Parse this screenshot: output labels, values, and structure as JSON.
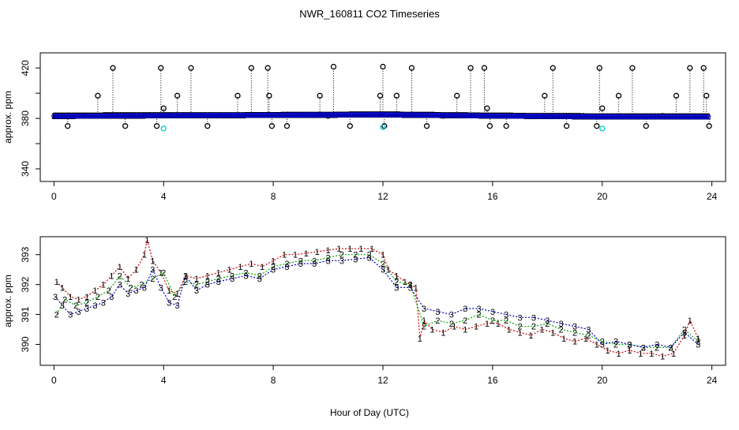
{
  "figure": {
    "title": "NWR_160811  CO2 Timeseries",
    "xlabel": "Hour of Day (UTC)"
  },
  "chart_data": [
    {
      "type": "scatter",
      "title": "NWR_160811  CO2 Timeseries",
      "xlabel": "",
      "ylabel": "approx. ppm",
      "xlim": [
        -0.5,
        24.5
      ],
      "ylim": [
        330,
        432
      ],
      "xticks": [
        0,
        4,
        8,
        12,
        16,
        20,
        24
      ],
      "yticks": [
        340,
        360,
        380,
        400,
        420
      ],
      "ytick_labels": [
        "340",
        "",
        "380",
        "",
        "420"
      ],
      "grid": false,
      "series": [
        {
          "name": "",
          "marker": "o",
          "color": "#000000",
          "x": [
            0.05,
            0.5,
            1.0,
            1.6,
            2.15,
            2.6,
            3.3,
            3.75,
            3.9,
            4.0,
            4.5,
            5.0,
            5.6,
            6.7,
            7.2,
            7.8,
            7.85,
            7.95,
            8.5,
            9.7,
            10.0,
            10.2,
            10.8,
            11.9,
            12.0,
            12.05,
            12.5,
            13.05,
            13.6,
            14.2,
            14.7,
            15.2,
            15.7,
            15.8,
            15.9,
            16.5,
            17.2,
            17.9,
            18.2,
            18.7,
            19.3,
            19.8,
            19.9,
            20.0,
            20.6,
            21.1,
            21.6,
            22.2,
            22.7,
            23.2,
            23.7,
            23.8,
            23.9
          ],
          "y": [
            382,
            374,
            382,
            398,
            420,
            374,
            382,
            374,
            420,
            388,
            398,
            420,
            374,
            398,
            420,
            420,
            398,
            374,
            374,
            398,
            382,
            421,
            374,
            398,
            421,
            374,
            398,
            420,
            374,
            382,
            398,
            420,
            420,
            388,
            374,
            374,
            382,
            398,
            420,
            374,
            382,
            374,
            420,
            388,
            398,
            420,
            374,
            382,
            398,
            420,
            420,
            398,
            374
          ]
        },
        {
          "name": "",
          "marker": "1",
          "color": "#d40000",
          "note_baseline": "continuous near 382 ppm, 0-24 h",
          "x": [
            0,
            4,
            8,
            12,
            16,
            20,
            23.9
          ],
          "y": [
            382.5,
            383,
            383,
            383.5,
            382.5,
            382,
            382
          ]
        },
        {
          "name": "",
          "marker": "2",
          "color": "#00aa00",
          "x": [
            0,
            4,
            8,
            12,
            16,
            20,
            23.9
          ],
          "y": [
            382,
            382.5,
            382.8,
            383.2,
            382.3,
            381.6,
            381.5
          ]
        },
        {
          "name": "",
          "marker": "3",
          "color": "#0000d0",
          "x": [
            0,
            4,
            8,
            12,
            16,
            20,
            23.9
          ],
          "y": [
            381.8,
            382.3,
            382.6,
            383,
            382,
            381.4,
            381.3
          ]
        },
        {
          "name": "",
          "marker": "o",
          "color": "#00cccc",
          "x": [
            4.0,
            12.0,
            20.0
          ],
          "y": [
            372,
            373,
            372
          ]
        }
      ]
    },
    {
      "type": "scatter",
      "xlabel": "Hour of Day (UTC)",
      "ylabel": "approx. ppm",
      "xlim": [
        -0.5,
        24.5
      ],
      "ylim": [
        389.3,
        393.6
      ],
      "xticks": [
        0,
        4,
        8,
        12,
        16,
        20,
        24
      ],
      "yticks": [
        390,
        391,
        392,
        393
      ],
      "grid": false,
      "series": [
        {
          "name": "",
          "marker": "1",
          "color": "#d40000",
          "x": [
            0.1,
            0.3,
            0.6,
            0.9,
            1.2,
            1.5,
            1.8,
            2.1,
            2.4,
            2.7,
            3.0,
            3.3,
            3.4,
            3.6,
            3.9,
            4.2,
            4.5,
            4.8,
            5.2,
            5.6,
            6.0,
            6.4,
            6.8,
            7.2,
            7.6,
            8.0,
            8.4,
            8.8,
            9.2,
            9.6,
            10.0,
            10.4,
            10.8,
            11.2,
            11.6,
            12.0,
            12.2,
            12.5,
            12.8,
            13.0,
            13.2,
            13.35,
            13.5,
            13.8,
            14.2,
            14.6,
            15.0,
            15.4,
            15.8,
            16.2,
            16.6,
            17.0,
            17.4,
            17.8,
            18.2,
            18.6,
            19.0,
            19.4,
            19.8,
            20.2,
            20.6,
            21.0,
            21.4,
            21.8,
            22.2,
            22.6,
            23.0,
            23.2,
            23.5
          ],
          "y": [
            392.1,
            391.9,
            391.6,
            391.5,
            391.6,
            391.8,
            392.0,
            392.3,
            392.6,
            392.2,
            392.5,
            393.0,
            393.5,
            392.8,
            392.4,
            391.8,
            391.7,
            392.3,
            392.2,
            392.3,
            392.4,
            392.5,
            392.6,
            392.7,
            392.6,
            392.8,
            393.0,
            393.0,
            393.05,
            393.1,
            393.15,
            393.2,
            393.2,
            393.2,
            393.2,
            393.0,
            392.5,
            392.3,
            392.1,
            392.0,
            391.9,
            390.2,
            390.8,
            390.5,
            390.4,
            390.6,
            390.5,
            390.6,
            390.7,
            390.7,
            390.5,
            390.4,
            390.3,
            390.5,
            390.4,
            390.2,
            390.1,
            390.2,
            390.0,
            389.8,
            389.7,
            389.8,
            389.7,
            389.7,
            389.6,
            389.7,
            390.3,
            390.8,
            390.2
          ]
        },
        {
          "name": "",
          "marker": "2",
          "color": "#00aa00",
          "x": [
            0.1,
            0.4,
            0.8,
            1.2,
            1.6,
            2.0,
            2.4,
            2.8,
            3.2,
            3.6,
            4.0,
            4.4,
            4.8,
            5.2,
            5.6,
            6.0,
            6.5,
            7.0,
            7.5,
            8.0,
            8.5,
            9.0,
            9.5,
            10.0,
            10.5,
            11.0,
            11.5,
            12.0,
            12.5,
            13.0,
            13.5,
            14.0,
            14.5,
            15.0,
            15.5,
            16.0,
            16.5,
            17.0,
            17.5,
            18.0,
            18.5,
            19.0,
            19.5,
            20.0,
            20.5,
            21.0,
            21.5,
            22.0,
            22.5,
            23.0,
            23.5
          ],
          "y": [
            391.0,
            391.5,
            391.3,
            391.4,
            391.6,
            391.8,
            392.3,
            391.9,
            392.0,
            392.2,
            392.4,
            391.6,
            392.1,
            392.0,
            392.1,
            392.2,
            392.3,
            392.4,
            392.3,
            392.6,
            392.7,
            392.8,
            392.8,
            392.9,
            393.0,
            393.0,
            393.0,
            392.7,
            392.1,
            392.0,
            390.6,
            390.8,
            390.7,
            390.8,
            391.0,
            390.8,
            390.8,
            390.6,
            390.6,
            390.7,
            390.5,
            390.4,
            390.3,
            390.1,
            390.0,
            390.0,
            389.9,
            389.9,
            389.9,
            390.5,
            390.1
          ]
        },
        {
          "name": "",
          "marker": "3",
          "color": "#0000d0",
          "x": [
            0.05,
            0.3,
            0.6,
            0.9,
            1.2,
            1.5,
            1.8,
            2.1,
            2.4,
            2.7,
            3.0,
            3.3,
            3.6,
            3.9,
            4.2,
            4.5,
            4.8,
            5.2,
            5.6,
            6.0,
            6.5,
            7.0,
            7.5,
            8.0,
            8.5,
            9.0,
            9.5,
            10.0,
            10.5,
            11.0,
            11.5,
            12.0,
            12.5,
            13.0,
            13.5,
            14.0,
            14.5,
            15.0,
            15.5,
            16.0,
            16.5,
            17.0,
            17.5,
            18.0,
            18.5,
            19.0,
            19.5,
            20.0,
            20.5,
            21.0,
            21.5,
            22.0,
            22.5,
            23.0,
            23.5
          ],
          "y": [
            391.6,
            391.3,
            391.0,
            391.1,
            391.2,
            391.3,
            391.4,
            391.6,
            392.0,
            391.7,
            391.8,
            391.9,
            392.5,
            391.9,
            391.4,
            391.3,
            392.3,
            391.8,
            392.0,
            392.1,
            392.2,
            392.3,
            392.2,
            392.5,
            392.6,
            392.7,
            392.7,
            392.8,
            392.8,
            392.85,
            392.9,
            392.5,
            391.9,
            391.9,
            391.2,
            391.1,
            391.0,
            391.2,
            391.2,
            391.1,
            391.0,
            390.9,
            390.9,
            390.8,
            390.7,
            390.6,
            390.5,
            390.0,
            390.1,
            390.0,
            389.9,
            390.0,
            389.9,
            390.4,
            390.0
          ]
        }
      ]
    }
  ]
}
